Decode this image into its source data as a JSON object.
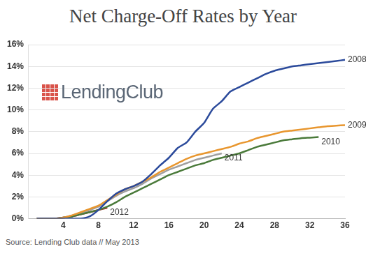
{
  "chart_data": {
    "type": "line",
    "title": "Net Charge-Off Rates by Year",
    "logo": "LendingClub",
    "source": "Source: Lending Club data // May 2013",
    "x": [
      1,
      2,
      3,
      4,
      5,
      6,
      7,
      8,
      9,
      10,
      11,
      12,
      13,
      14,
      15,
      16,
      17,
      18,
      19,
      20,
      21,
      22,
      23,
      24,
      25,
      26,
      27,
      28,
      29,
      30,
      31,
      32,
      33,
      34,
      35,
      36
    ],
    "series": [
      {
        "name": "2008",
        "color": "#2b4a9b",
        "values": [
          0,
          0,
          0,
          0,
          0,
          0,
          0.2,
          0.8,
          1.6,
          2.3,
          2.7,
          3.0,
          3.4,
          4.1,
          4.9,
          5.6,
          6.5,
          7.0,
          8.0,
          8.8,
          10.1,
          10.8,
          11.7,
          12.1,
          12.5,
          12.9,
          13.3,
          13.6,
          13.8,
          14.0,
          14.1,
          14.2,
          14.3,
          14.4,
          14.5,
          14.6
        ]
      },
      {
        "name": "2009",
        "color": "#e8962e",
        "values": [
          0,
          0,
          0,
          0.1,
          0.3,
          0.6,
          0.9,
          1.2,
          1.7,
          2.2,
          2.7,
          3.0,
          3.4,
          3.8,
          4.3,
          4.7,
          5.1,
          5.5,
          5.8,
          6.0,
          6.2,
          6.4,
          6.6,
          6.9,
          7.1,
          7.4,
          7.6,
          7.8,
          8.0,
          8.1,
          8.2,
          8.3,
          8.4,
          8.5,
          8.55,
          8.6
        ]
      },
      {
        "name": "2010",
        "color": "#4a7a3a",
        "values": [
          0,
          0,
          0,
          0.1,
          0.2,
          0.4,
          0.6,
          0.8,
          1.1,
          1.5,
          2.0,
          2.4,
          2.8,
          3.2,
          3.6,
          4.0,
          4.3,
          4.6,
          4.9,
          5.1,
          5.4,
          5.6,
          5.8,
          6.0,
          6.3,
          6.6,
          6.8,
          7.0,
          7.2,
          7.3,
          7.4,
          7.45,
          7.5,
          null,
          null,
          null
        ]
      },
      {
        "name": "2011",
        "color": "#a0a0a0",
        "values": [
          0,
          0,
          0,
          0.1,
          0.3,
          0.5,
          0.8,
          1.1,
          1.6,
          2.1,
          2.5,
          2.8,
          3.2,
          3.7,
          4.1,
          4.5,
          4.8,
          5.1,
          5.4,
          5.6,
          5.8,
          6.0,
          null,
          null,
          null,
          null,
          null,
          null,
          null,
          null,
          null,
          null,
          null,
          null,
          null,
          null
        ]
      },
      {
        "name": "2012",
        "color": "#b02a2a",
        "values": [
          0,
          0,
          0,
          0.1,
          0.2,
          0.4,
          0.6,
          0.8,
          1.0,
          null,
          null,
          null,
          null,
          null,
          null,
          null,
          null,
          null,
          null,
          null,
          null,
          null,
          null,
          null,
          null,
          null,
          null,
          null,
          null,
          null,
          null,
          null,
          null,
          null,
          null,
          null
        ]
      }
    ],
    "xlim": [
      0,
      36
    ],
    "xticks": [
      4,
      8,
      12,
      16,
      20,
      24,
      28,
      32,
      36
    ],
    "ylim": [
      0,
      16
    ],
    "yticks": [
      {
        "value": 0,
        "label": "0%"
      },
      {
        "value": 2,
        "label": "2%"
      },
      {
        "value": 4,
        "label": "4%"
      },
      {
        "value": 6,
        "label": "6%"
      },
      {
        "value": 8,
        "label": "8%"
      },
      {
        "value": 10,
        "label": "10%"
      },
      {
        "value": 12,
        "label": "12%"
      },
      {
        "value": 14,
        "label": "14%"
      },
      {
        "value": 16,
        "label": "16%"
      }
    ],
    "grid": "y"
  }
}
